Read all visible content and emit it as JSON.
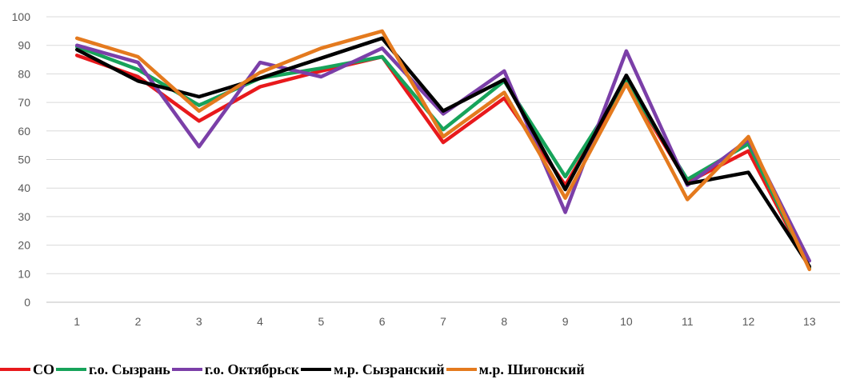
{
  "chart_data": {
    "type": "line",
    "x": [
      1,
      2,
      3,
      4,
      5,
      6,
      7,
      8,
      9,
      10,
      11,
      12,
      13
    ],
    "ylim": [
      0,
      100
    ],
    "yticks": [
      0,
      10,
      20,
      30,
      40,
      50,
      60,
      70,
      80,
      90,
      100
    ],
    "grid": true,
    "legend_position": "bottom",
    "series": [
      {
        "name": "СО",
        "color": "#e8191c",
        "values": [
          86.5,
          79,
          63.5,
          75.5,
          81,
          86,
          56,
          71.5,
          41,
          77,
          42,
          53,
          12
        ]
      },
      {
        "name": "г.о. Сызрань",
        "color": "#17a35a",
        "values": [
          89.5,
          81.5,
          69,
          78.5,
          82,
          86,
          60.5,
          77.5,
          44,
          77.5,
          43,
          55.5,
          12
        ]
      },
      {
        "name": "г.о. Октябрьск",
        "color": "#7b3fa8",
        "values": [
          90,
          84,
          54.5,
          84,
          79,
          89,
          66,
          81,
          31.5,
          88,
          41,
          57,
          14.5
        ]
      },
      {
        "name": "м.р. Сызранский",
        "color": "#000000",
        "values": [
          88.5,
          77.5,
          72,
          78.5,
          85.5,
          92.5,
          67,
          78,
          39.5,
          79.5,
          41.5,
          45.5,
          12.5
        ]
      },
      {
        "name": "м.р. Шигонский",
        "color": "#e47a1e",
        "values": [
          92.5,
          86,
          67,
          80.5,
          89,
          95,
          58,
          73.5,
          36.5,
          76.5,
          36,
          58,
          11.5
        ]
      }
    ]
  }
}
